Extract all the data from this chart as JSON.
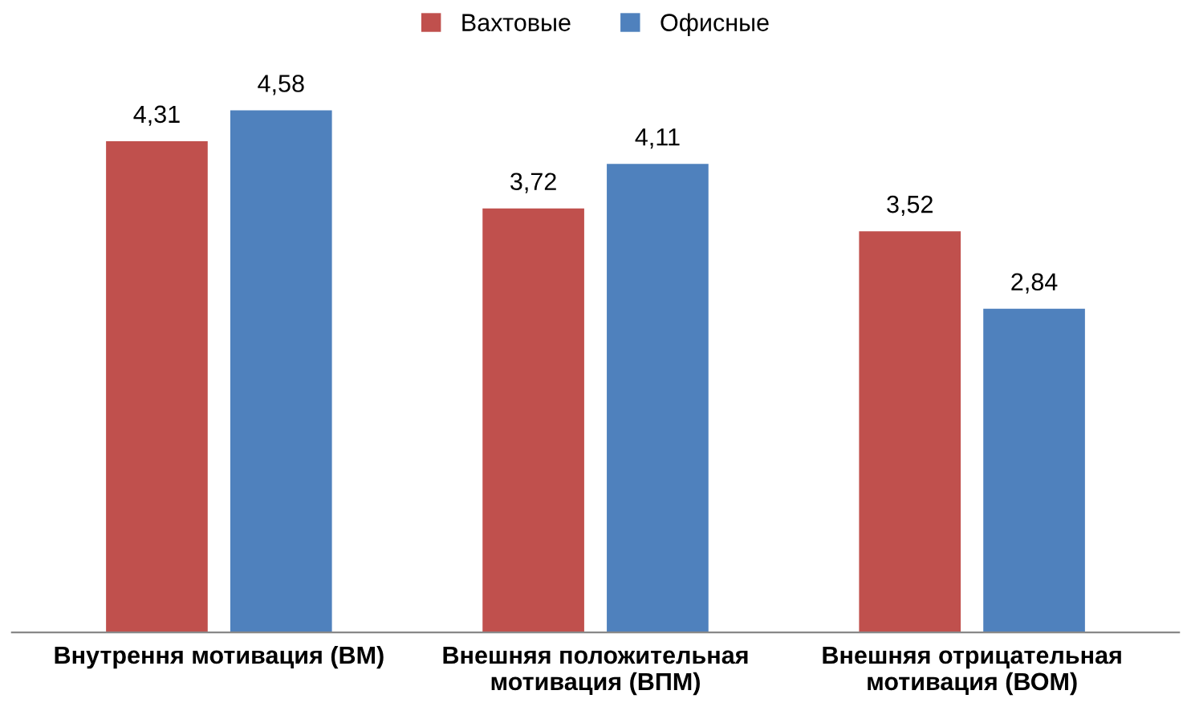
{
  "chart_data": {
    "type": "bar",
    "categories": [
      "Внутрення мотивация (ВМ)",
      "Внешняя положительная мотивация (ВПМ)",
      "Внешняя отрицательная мотивация (ВОМ)"
    ],
    "series": [
      {
        "name": "Вахтовые",
        "color": "#c0504d",
        "values": [
          4.31,
          3.72,
          3.52
        ],
        "value_labels": [
          "4,31",
          "3,72",
          "3,52"
        ]
      },
      {
        "name": "Офисные",
        "color": "#4f81bd",
        "values": [
          4.58,
          4.11,
          2.84
        ],
        "value_labels": [
          "4,58",
          "4,11",
          "2,84"
        ]
      }
    ],
    "legend": "top"
  }
}
